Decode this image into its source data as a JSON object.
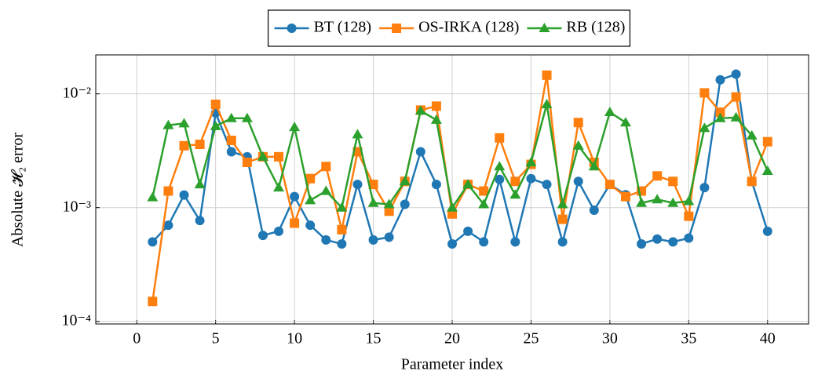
{
  "chart_data": {
    "type": "line",
    "xlabel": "Parameter index",
    "ylabel": "Absolute 𝓗₂ error",
    "log_y": true,
    "grid": true,
    "legend": "top-outside",
    "xlim": [
      -2.6,
      42.6
    ],
    "xticks": [
      0,
      5,
      10,
      15,
      20,
      25,
      30,
      35,
      40
    ],
    "ylim": [
      9.5e-05,
      0.022
    ],
    "yticks": [
      {
        "value": 0.0001,
        "label": "10⁻⁴"
      },
      {
        "value": 0.001,
        "label": "10⁻³"
      },
      {
        "value": 0.01,
        "label": "10⁻²"
      }
    ],
    "x": [
      1,
      2,
      3,
      4,
      5,
      6,
      7,
      8,
      9,
      10,
      11,
      12,
      13,
      14,
      15,
      16,
      17,
      18,
      19,
      20,
      21,
      22,
      23,
      24,
      25,
      26,
      27,
      28,
      29,
      30,
      31,
      32,
      33,
      34,
      35,
      36,
      37,
      38,
      39,
      40
    ],
    "series": [
      {
        "name": "BT (128)",
        "color": "#1f77b4",
        "marker": "circle",
        "values": [
          0.0005,
          0.0007,
          0.00129,
          0.00077,
          0.0068,
          0.0031,
          0.0028,
          0.00057,
          0.00062,
          0.00125,
          0.0007,
          0.00052,
          0.00048,
          0.0016,
          0.00052,
          0.00055,
          0.00107,
          0.0031,
          0.0016,
          0.00048,
          0.00062,
          0.0005,
          0.00177,
          0.0005,
          0.0018,
          0.0016,
          0.0005,
          0.0017,
          0.00095,
          0.0016,
          0.0013,
          0.00048,
          0.00053,
          0.0005,
          0.00054,
          0.0015,
          0.0133,
          0.0149,
          0.0017,
          0.00062
        ]
      },
      {
        "name": "OS-IRKA (128)",
        "color": "#ff7f0e",
        "marker": "square",
        "values": [
          0.00015,
          0.0014,
          0.0035,
          0.0036,
          0.0081,
          0.0039,
          0.0025,
          0.0028,
          0.0028,
          0.00073,
          0.0018,
          0.0023,
          0.00064,
          0.0031,
          0.0016,
          0.00093,
          0.0017,
          0.0072,
          0.0078,
          0.00088,
          0.0016,
          0.0014,
          0.0041,
          0.0017,
          0.0024,
          0.0146,
          0.00079,
          0.0056,
          0.0025,
          0.0016,
          0.00125,
          0.0014,
          0.0019,
          0.0017,
          0.00084,
          0.0102,
          0.0069,
          0.0094,
          0.0017,
          0.0038
        ]
      },
      {
        "name": "RB (128)",
        "color": "#2ca02c",
        "marker": "triangle",
        "values": [
          0.00123,
          0.0053,
          0.0055,
          0.0016,
          0.0052,
          0.0061,
          0.0061,
          0.0028,
          0.0015,
          0.0051,
          0.00116,
          0.0014,
          0.001,
          0.0044,
          0.0011,
          0.00107,
          0.0017,
          0.0071,
          0.0059,
          0.001,
          0.0016,
          0.00107,
          0.0023,
          0.0013,
          0.0025,
          0.0081,
          0.00107,
          0.0035,
          0.0023,
          0.0069,
          0.0056,
          0.0011,
          0.00118,
          0.0011,
          0.00114,
          0.005,
          0.0061,
          0.0062,
          0.0043,
          0.0021
        ]
      }
    ]
  }
}
